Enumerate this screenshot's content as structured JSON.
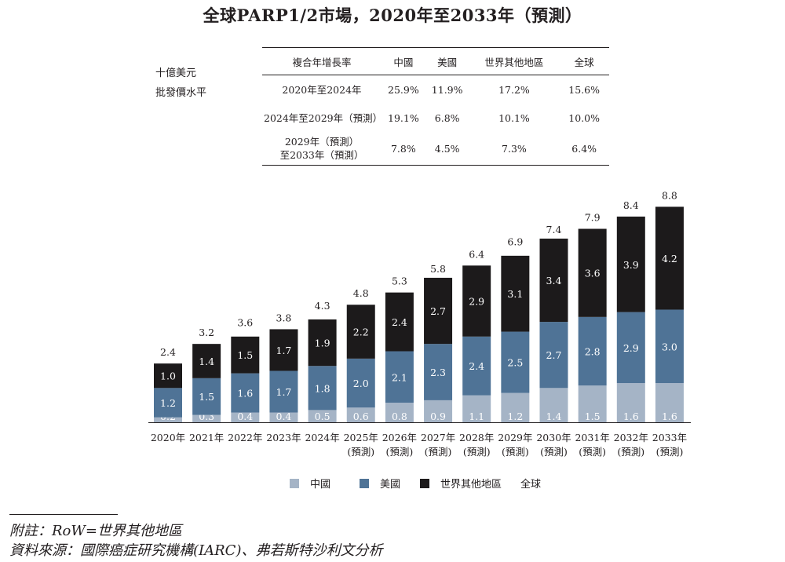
{
  "title": "全球PARP1/2市場，2020年至2033年（預測）",
  "unit_label_1": "十億美元",
  "unit_label_2": "批發價水平",
  "cagr_table": {
    "headers": [
      "複合年增長率",
      "中國",
      "美國",
      "世界其他地區",
      "全球"
    ],
    "rows": [
      {
        "period": [
          "2020年至2024年"
        ],
        "values": [
          "25.9%",
          "11.9%",
          "17.2%",
          "15.6%"
        ]
      },
      {
        "period": [
          "2024年至2029年（預測）"
        ],
        "values": [
          "19.1%",
          "6.8%",
          "10.1%",
          "10.0%"
        ]
      },
      {
        "period": [
          "2029年（預測）",
          "至2033年（預測）"
        ],
        "values": [
          "7.8%",
          "4.5%",
          "7.3%",
          "6.4%"
        ]
      }
    ]
  },
  "chart_data": {
    "type": "bar",
    "stacked": true,
    "categories": [
      "2020年",
      "2021年",
      "2022年",
      "2023年",
      "2024年",
      "2025年",
      "2026年",
      "2027年",
      "2028年",
      "2029年",
      "2030年",
      "2031年",
      "2032年",
      "2033年"
    ],
    "category_sublabels": [
      "",
      "",
      "",
      "",
      "",
      "(預測)",
      "(預測)",
      "(預測)",
      "(預測)",
      "(預測)",
      "(預測)",
      "(預測)",
      "(預測)",
      "(預測)"
    ],
    "series": [
      {
        "name": "中國",
        "color": "#a5b4c6",
        "values": [
          0.2,
          0.3,
          0.4,
          0.4,
          0.5,
          0.6,
          0.8,
          0.9,
          1.1,
          1.2,
          1.4,
          1.5,
          1.6,
          1.6
        ],
        "labels": [
          "0.2",
          "0.3",
          "0.4",
          "0.4",
          "0.5",
          "0.6",
          "0.8",
          "0.9",
          "1.1",
          "1.2",
          "1.4",
          "1.5",
          "1.6",
          "1.6"
        ]
      },
      {
        "name": "美國",
        "color": "#4f7396",
        "values": [
          1.2,
          1.5,
          1.6,
          1.7,
          1.8,
          2.0,
          2.1,
          2.3,
          2.4,
          2.5,
          2.7,
          2.8,
          2.9,
          3.0
        ],
        "labels": [
          "1.2",
          "1.5",
          "1.6",
          "1.7",
          "1.8",
          "2.0",
          "2.1",
          "2.3",
          "2.4",
          "2.5",
          "2.7",
          "2.8",
          "2.9",
          "3.0"
        ]
      },
      {
        "name": "世界其他地區",
        "color": "#1c1a1b",
        "values": [
          1.0,
          1.4,
          1.5,
          1.7,
          1.9,
          2.2,
          2.4,
          2.7,
          2.9,
          3.1,
          3.4,
          3.6,
          3.9,
          4.2
        ],
        "labels": [
          "1.0",
          "1.4",
          "1.5",
          "1.7",
          "1.9",
          "2.2",
          "2.4",
          "2.7",
          "2.9",
          "3.1",
          "3.4",
          "3.6",
          "3.9",
          "4.2"
        ]
      }
    ],
    "totals": [
      2.4,
      3.2,
      3.6,
      3.8,
      4.3,
      4.8,
      5.3,
      5.8,
      6.4,
      6.9,
      7.4,
      7.9,
      8.4,
      8.8
    ],
    "total_labels": [
      "2.4",
      "3.2",
      "3.6",
      "3.8",
      "4.3",
      "4.8",
      "5.3",
      "5.8",
      "6.4",
      "6.9",
      "7.4",
      "7.9",
      "8.4",
      "8.8"
    ],
    "legend": [
      "中國",
      "美國",
      "世界其他地區",
      "全球"
    ],
    "legend_position": "bottom-center",
    "ylim": [
      0,
      8.8
    ],
    "grid": false
  },
  "notes": {
    "note1": "附註：RoW=世界其他地區",
    "note2": "資料來源：國際癌症研究機構(IARC)、弗若斯特沙利文分析"
  }
}
